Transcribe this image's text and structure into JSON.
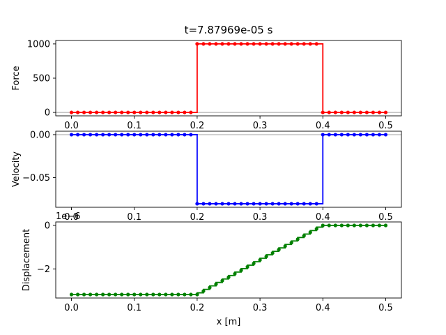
{
  "figure": {
    "title": "t=7.87969e-05 s"
  },
  "chart_data": [
    {
      "type": "line",
      "ylabel": "Force",
      "xlim": [
        -0.025,
        0.525
      ],
      "ylim": [
        -50,
        1050
      ],
      "xticks": [
        0.0,
        0.1,
        0.2,
        0.3,
        0.4,
        0.5
      ],
      "xticklabels": [
        "0.0",
        "0.1",
        "0.2",
        "0.3",
        "0.4",
        "0.5"
      ],
      "yticks": [
        0,
        500,
        1000
      ],
      "yticklabels": [
        "0",
        "500",
        "1000"
      ],
      "zero_line": true,
      "color": "#ff0000",
      "series": [
        {
          "x": [
            0.0,
            0.2,
            0.2,
            0.4,
            0.4,
            0.5
          ],
          "y": [
            0,
            0,
            1000,
            1000,
            0,
            0
          ]
        }
      ],
      "markers": {
        "x_start": 0.0,
        "x_end": 0.5,
        "count": 51,
        "segments": [
          {
            "x_from": 0.0,
            "x_to": 0.2,
            "y": 0
          },
          {
            "x_from": 0.2,
            "x_to": 0.4,
            "y": 1000
          },
          {
            "x_from": 0.4,
            "x_to": 0.5,
            "y": 0
          }
        ]
      }
    },
    {
      "type": "line",
      "ylabel": "Velocity",
      "xlim": [
        -0.025,
        0.525
      ],
      "ylim": [
        -0.0845,
        0.004
      ],
      "xticks": [
        0.0,
        0.1,
        0.2,
        0.3,
        0.4,
        0.5
      ],
      "xticklabels": [
        "0.0",
        "0.1",
        "0.2",
        "0.3",
        "0.4",
        "0.5"
      ],
      "yticks": [
        0.0,
        -0.05
      ],
      "yticklabels": [
        "0.00",
        "−0.05"
      ],
      "zero_line": true,
      "color": "#0000ff",
      "series": [
        {
          "x": [
            0.0,
            0.2,
            0.2,
            0.4,
            0.4,
            0.5
          ],
          "y": [
            0,
            0,
            -0.0804,
            -0.0804,
            0,
            0
          ]
        }
      ],
      "markers": {
        "x_start": 0.0,
        "x_end": 0.5,
        "count": 51,
        "segments": [
          {
            "x_from": 0.0,
            "x_to": 0.2,
            "y": 0
          },
          {
            "x_from": 0.2,
            "x_to": 0.4,
            "y": -0.0804
          },
          {
            "x_from": 0.4,
            "x_to": 0.5,
            "y": 0
          }
        ]
      }
    },
    {
      "type": "line",
      "ylabel": "Displacement",
      "xlabel": "x [m]",
      "offset_text": "1e−6",
      "xlim": [
        -0.025,
        0.525
      ],
      "ylim": [
        -3.34,
        0.16
      ],
      "xticks": [
        0.0,
        0.1,
        0.2,
        0.3,
        0.4,
        0.5
      ],
      "xticklabels": [
        "0.0",
        "0.1",
        "0.2",
        "0.3",
        "0.4",
        "0.5"
      ],
      "yticks": [
        0,
        -2
      ],
      "yticklabels": [
        "0",
        "−2"
      ],
      "zero_line": false,
      "color": "#008000",
      "staircase": {
        "x_from": 0.2,
        "x_to": 0.4,
        "steps": 20,
        "y_from": -3.18,
        "y_to": 0
      },
      "markers": {
        "x_start": 0.0,
        "x_end": 0.5,
        "count": 51,
        "segments": [
          {
            "x_from": 0.0,
            "x_to": 0.2,
            "y": -3.18
          },
          {
            "x_from": 0.2,
            "x_to": 0.4,
            "y_linear_from": -3.18,
            "y_linear_to": 0
          },
          {
            "x_from": 0.4,
            "x_to": 0.5,
            "y": 0
          }
        ]
      }
    }
  ]
}
